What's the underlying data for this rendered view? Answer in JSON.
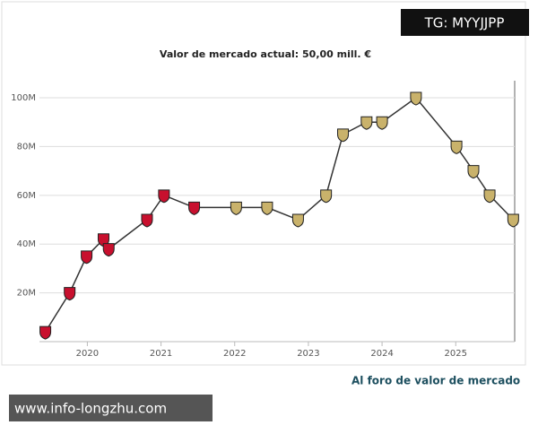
{
  "chart_data": {
    "type": "line",
    "title": "Valor de mercado actual: 50,00 mill. €",
    "link_text": "Al foro de valor de mercado",
    "x": [
      2019.43,
      2019.76,
      2019.99,
      2020.22,
      2020.29,
      2020.81,
      2021.04,
      2021.45,
      2022.02,
      2022.44,
      2022.86,
      2023.24,
      2023.47,
      2023.79,
      2024.0,
      2024.46,
      2025.01,
      2025.24,
      2025.46,
      2025.78
    ],
    "series": [
      {
        "color": "#333333",
        "values": [
          4,
          20,
          35,
          42,
          38,
          50,
          60,
          55,
          55,
          55,
          50,
          60,
          85,
          90,
          90,
          100,
          80,
          70,
          60,
          50
        ],
        "marker_colors": [
          "#c8102e",
          "#c8102e",
          "#c8102e",
          "#c8102e",
          "#c8102e",
          "#c8102e",
          "#c8102e",
          "#c8102e",
          "#c9b26b",
          "#c9b26b",
          "#c9b26b",
          "#c9b26b",
          "#c9b26b",
          "#c9b26b",
          "#c9b26b",
          "#c9b26b",
          "#c9b26b",
          "#c9b26b",
          "#c9b26b",
          "#c9b26b"
        ]
      }
    ],
    "xlim": [
      2019.35,
      2025.8
    ],
    "xticks": [
      2020,
      2021,
      2022,
      2023,
      2024,
      2025
    ],
    "ylim": [
      0,
      107
    ],
    "yticks": [
      {
        "value": 20,
        "label": "20M"
      },
      {
        "value": 40,
        "label": "40M"
      },
      {
        "value": 60,
        "label": "60M"
      },
      {
        "value": 80,
        "label": "80M"
      },
      {
        "value": 100,
        "label": "100M"
      }
    ],
    "grid": true
  },
  "overlays": {
    "top_right": "TG: MYYJJPP",
    "bottom_left": "www.info-longzhu.com"
  }
}
